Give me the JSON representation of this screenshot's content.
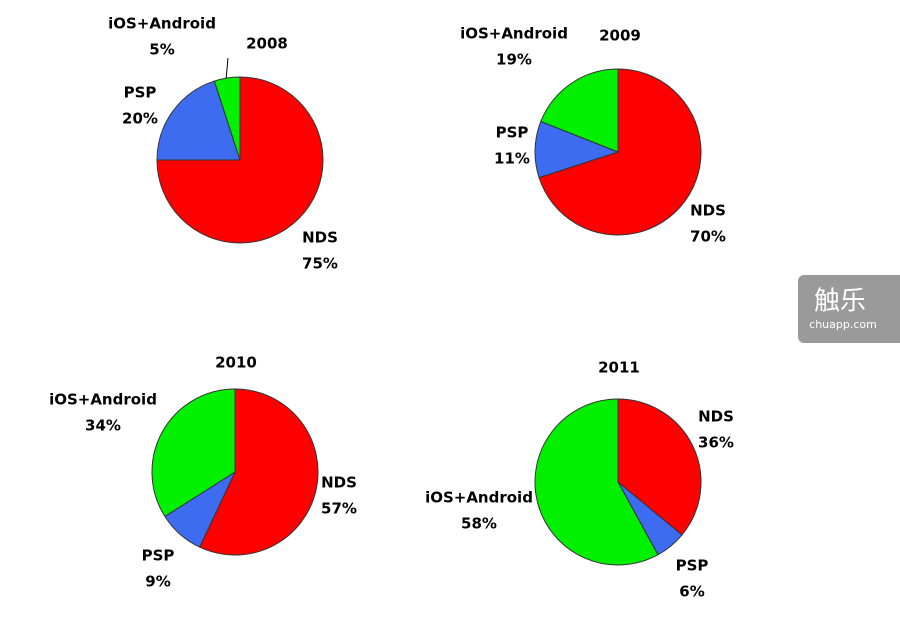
{
  "chart_data": [
    {
      "type": "pie",
      "title": "2008",
      "categories": [
        "NDS",
        "PSP",
        "iOS+Android"
      ],
      "values": [
        75,
        20,
        5
      ],
      "value_labels": [
        "75%",
        "20%",
        "5%"
      ],
      "colors": [
        "#ff0000",
        "#3e6cf0",
        "#00f000"
      ]
    },
    {
      "type": "pie",
      "title": "2009",
      "categories": [
        "NDS",
        "PSP",
        "iOS+Android"
      ],
      "values": [
        70,
        11,
        19
      ],
      "value_labels": [
        "70%",
        "11%",
        "19%"
      ],
      "colors": [
        "#ff0000",
        "#3e6cf0",
        "#00f000"
      ]
    },
    {
      "type": "pie",
      "title": "2010",
      "categories": [
        "NDS",
        "PSP",
        "iOS+Android"
      ],
      "values": [
        57,
        9,
        34
      ],
      "value_labels": [
        "57%",
        "9%",
        "34%"
      ],
      "colors": [
        "#ff0000",
        "#3e6cf0",
        "#00f000"
      ]
    },
    {
      "type": "pie",
      "title": "2011",
      "categories": [
        "NDS",
        "PSP",
        "iOS+Android"
      ],
      "values": [
        36,
        6,
        58
      ],
      "value_labels": [
        "36%",
        "6%",
        "58%"
      ],
      "colors": [
        "#ff0000",
        "#3e6cf0",
        "#00f000"
      ]
    }
  ],
  "watermark": {
    "title": "触乐",
    "site": "chuapp.com"
  }
}
